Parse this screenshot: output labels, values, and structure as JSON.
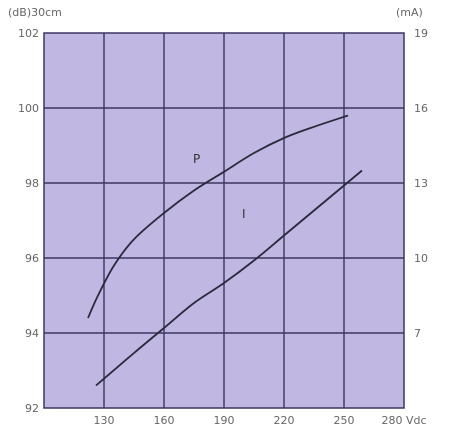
{
  "chart_data": {
    "type": "line",
    "title": "",
    "xlabel": "Vdc",
    "x_ticks": [
      "130",
      "160",
      "190",
      "220",
      "250",
      "280 Vdc"
    ],
    "xlim": [
      100,
      280
    ],
    "left_axis": {
      "unit": "(dB)30cm",
      "ylim": [
        92,
        102
      ],
      "ticks": [
        "92",
        "94",
        "96",
        "98",
        "100",
        "102"
      ]
    },
    "right_axis": {
      "unit": "(mA)",
      "ylim": [
        4,
        19
      ],
      "ticks": [
        "7",
        "10",
        "13",
        "16",
        "19"
      ]
    },
    "grid": true,
    "background": "#c0b8e2",
    "grid_color": "#3a3560",
    "series": [
      {
        "name": "P",
        "axis": "left",
        "color": "#2a2a3a",
        "x": [
          122,
          127,
          135,
          145,
          160,
          175,
          190,
          205,
          220,
          235,
          252
        ],
        "y": [
          94.4,
          95.0,
          95.8,
          96.5,
          97.2,
          97.8,
          98.3,
          98.8,
          99.2,
          99.5,
          99.8
        ]
      },
      {
        "name": "I",
        "axis": "right",
        "color": "#2a2a3a",
        "x": [
          126,
          145,
          160,
          175,
          190,
          205,
          220,
          235,
          250,
          259
        ],
        "y": [
          4.9,
          6.2,
          7.2,
          8.2,
          9.0,
          9.9,
          10.9,
          11.9,
          12.9,
          13.5
        ]
      }
    ]
  }
}
